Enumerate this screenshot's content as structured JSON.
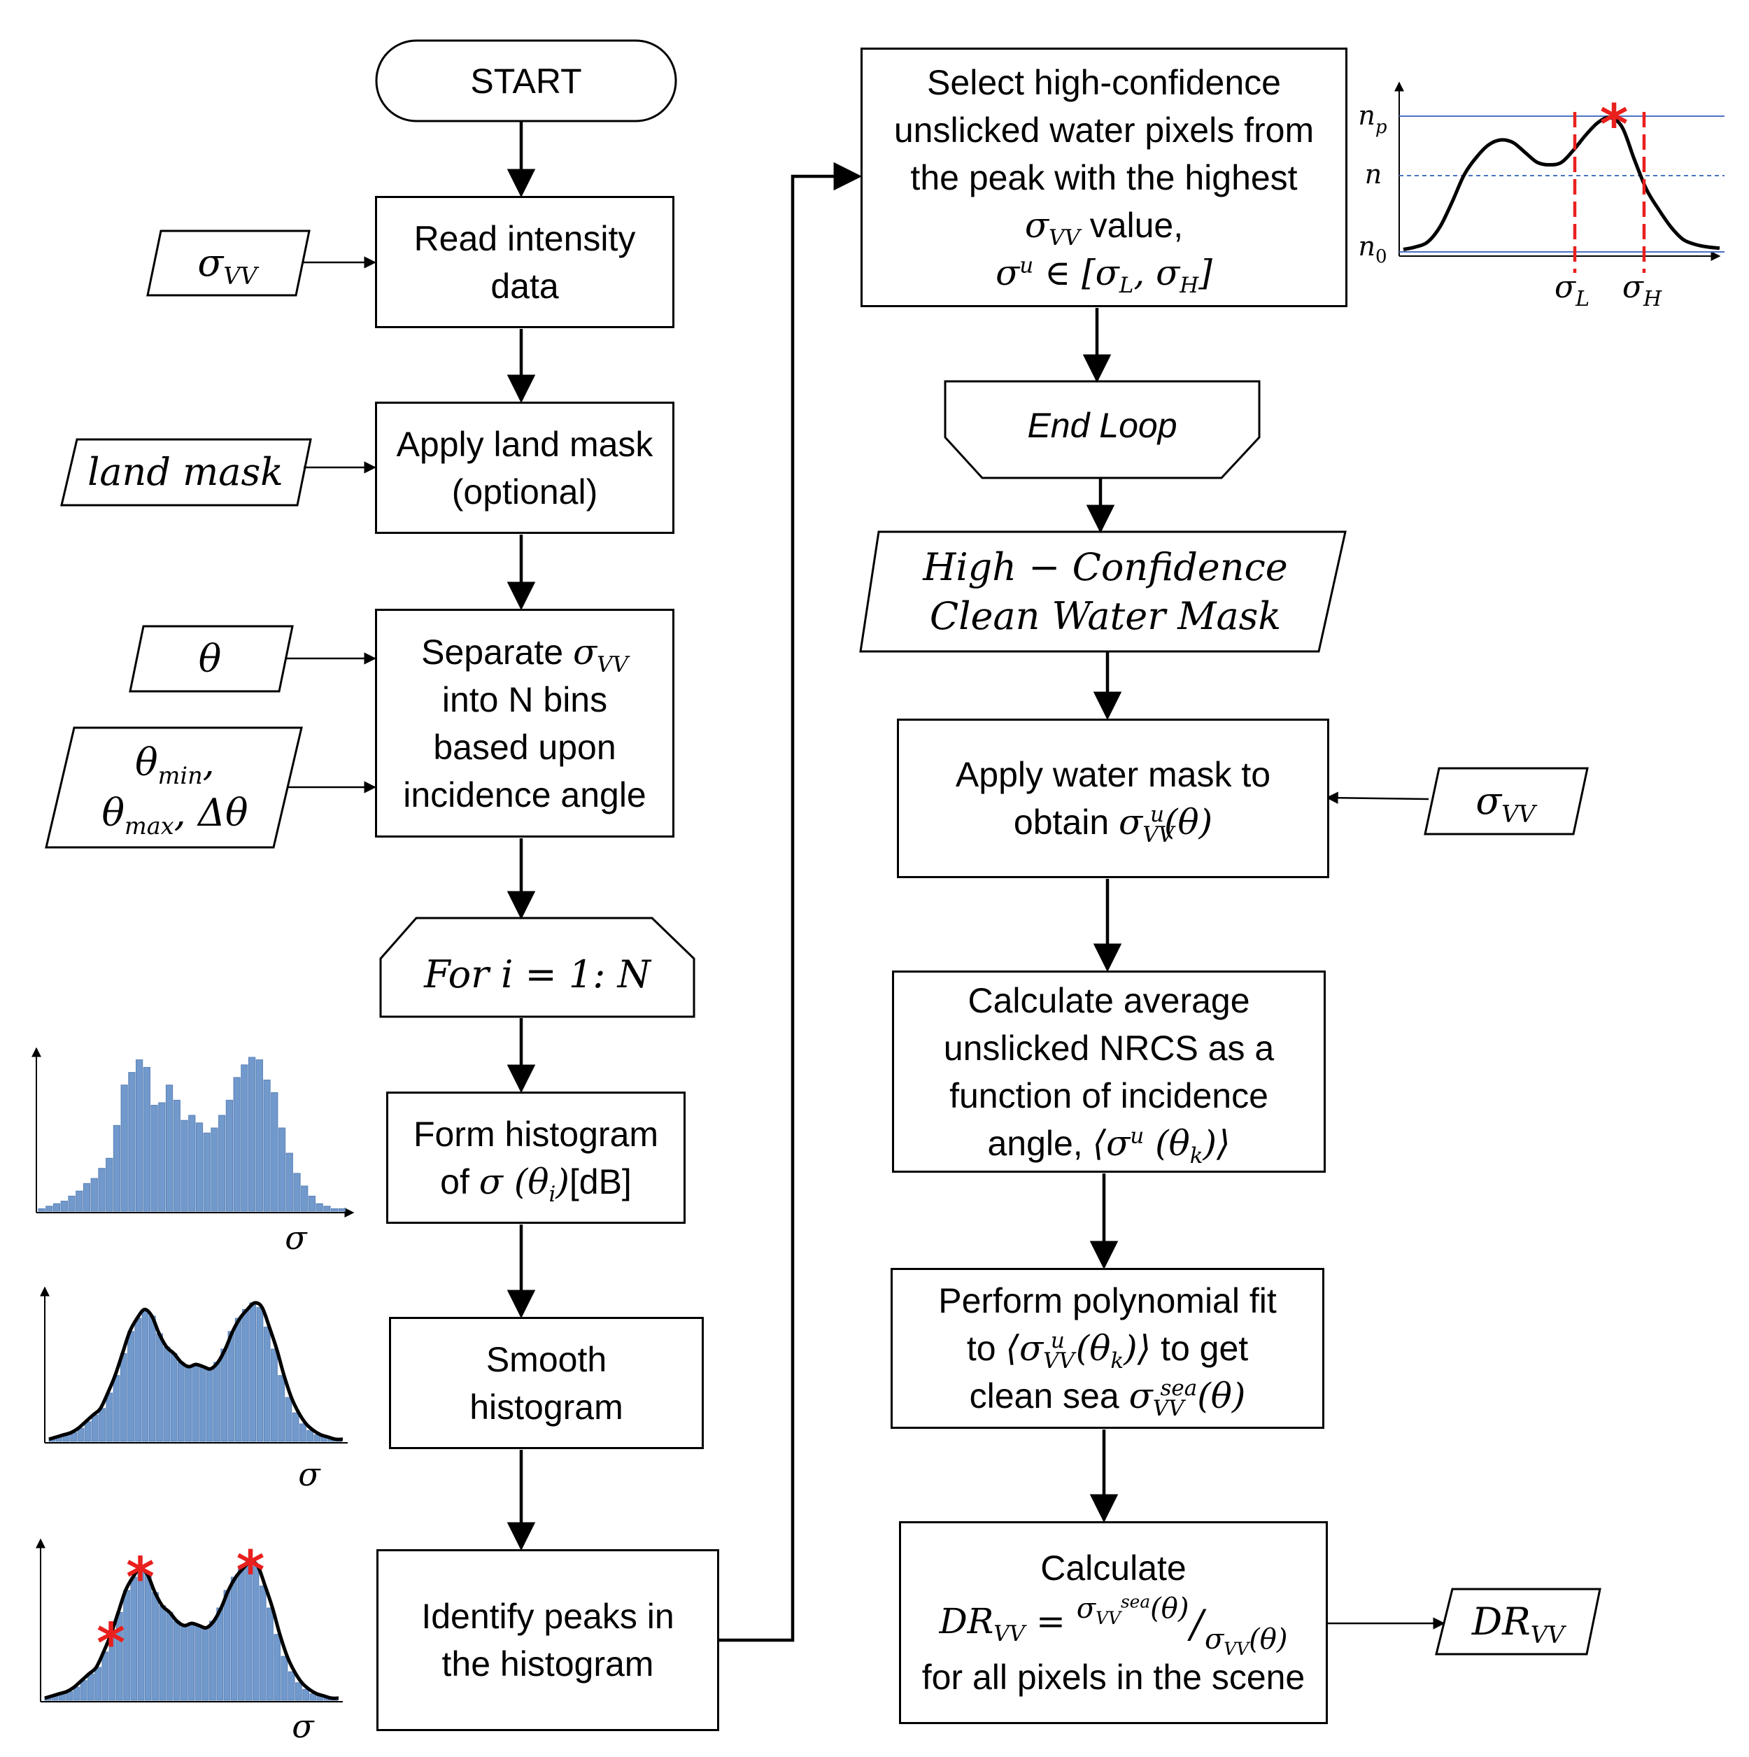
{
  "flow": {
    "start": "START",
    "read": [
      "Read intensity",
      "data"
    ],
    "land_mask": [
      "Apply land mask",
      "(optional)"
    ],
    "separate": [
      "Separate",
      "into N bins",
      "based upon",
      "incidence angle"
    ],
    "for_loop": "For i = 1: N",
    "form_hist": [
      "Form histogram",
      "of",
      "[dB]"
    ],
    "smooth": [
      "Smooth",
      "histogram"
    ],
    "identify": [
      "Identify peaks in",
      "the histogram"
    ],
    "select": [
      "Select high-confidence",
      "unslicked water pixels from",
      "the peak with the highest",
      "value,"
    ],
    "end_loop": "End Loop",
    "hc_mask": [
      "High − Confidence",
      "Clean Water Mask"
    ],
    "apply_water": [
      "Apply water mask to",
      "obtain"
    ],
    "calc_avg": [
      "Calculate average",
      "unslicked NRCS as a",
      "function of incidence",
      "angle,"
    ],
    "poly": [
      "Perform polynomial fit",
      "to",
      "to get",
      "clean sea"
    ],
    "calc_dr": [
      "Calculate",
      "for all pixels in the scene"
    ]
  },
  "inputs": {
    "sigma_vv": "σ",
    "land_mask": "land mask",
    "theta": "θ",
    "theta_range": [
      "θ",
      "θ",
      "Δθ"
    ],
    "sigma_vv_right": "σ",
    "dr_vv": "DR"
  },
  "symbols": {
    "sigma": "σ",
    "theta": "θ",
    "vv": "VV",
    "u": "u",
    "sea": "sea",
    "min": "min",
    "max": "max",
    "i": "i",
    "k": "k",
    "L": "L",
    "H": "H",
    "p": "p",
    "zero": "0",
    "n": "n",
    "in": "∈",
    "dr": "DR",
    "eq": "="
  },
  "chart_data": [
    {
      "type": "bar",
      "values": [
        1,
        2,
        3,
        4,
        6,
        8,
        11,
        13,
        17,
        21,
        34,
        50,
        55,
        60,
        57,
        42,
        43,
        50,
        44,
        36,
        38,
        35,
        31,
        33,
        38,
        44,
        53,
        58,
        61,
        60,
        52,
        47,
        33,
        23,
        15,
        10,
        6,
        3,
        2,
        1,
        1
      ],
      "xlabel": "σ"
    },
    {
      "type": "area",
      "values": [
        1,
        2,
        3,
        4,
        6,
        9,
        12,
        15,
        22,
        30,
        40,
        50,
        56,
        60,
        57,
        49,
        43,
        40,
        36,
        34,
        35,
        34,
        33,
        36,
        42,
        50,
        56,
        60,
        63,
        61,
        52,
        42,
        30,
        20,
        13,
        8,
        5,
        3,
        2,
        1,
        1
      ],
      "xlabel": "σ"
    },
    {
      "type": "area",
      "values": [
        1,
        2,
        3,
        4,
        6,
        9,
        12,
        15,
        22,
        30,
        40,
        50,
        56,
        60,
        57,
        49,
        43,
        40,
        36,
        34,
        35,
        34,
        33,
        36,
        42,
        50,
        56,
        60,
        63,
        61,
        52,
        42,
        30,
        20,
        13,
        8,
        5,
        3,
        2,
        1,
        1
      ],
      "xlabel": "σ",
      "peaks": [
        9,
        13,
        28
      ]
    },
    {
      "type": "line",
      "values": [
        2,
        4,
        8,
        20,
        40,
        62,
        76,
        86,
        90,
        88,
        80,
        72,
        70,
        72,
        82,
        94,
        104,
        108,
        100,
        74,
        50,
        34,
        20,
        10,
        6,
        4,
        3
      ],
      "yticks": [
        "n_p",
        "n",
        "n_0"
      ],
      "xticks": [
        "σ_L",
        "σ_H"
      ]
    }
  ]
}
